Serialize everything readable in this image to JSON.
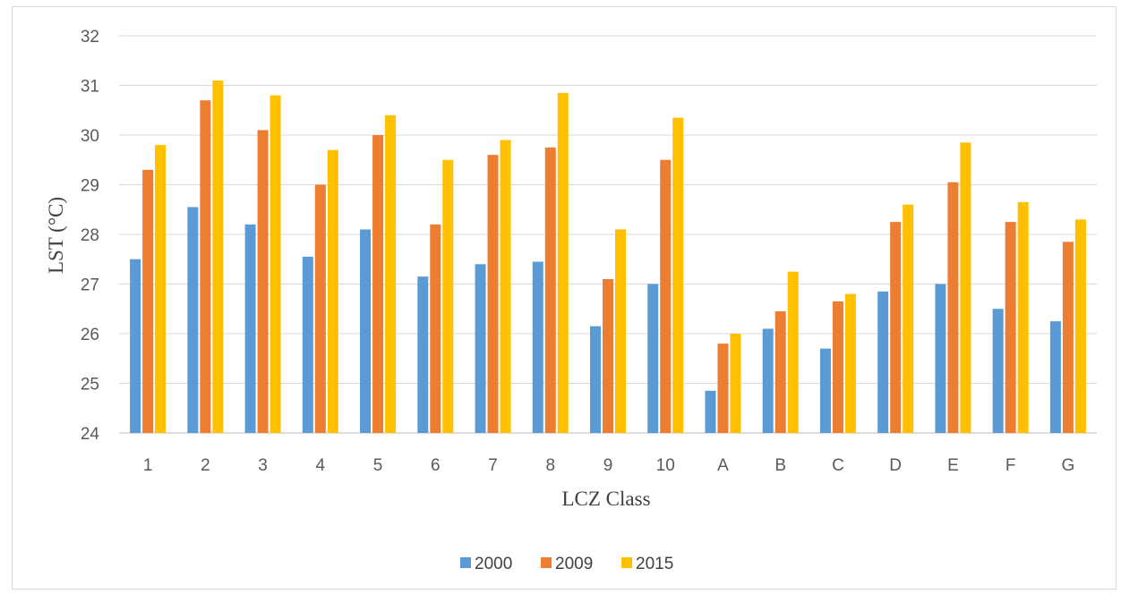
{
  "chart_data": {
    "type": "bar",
    "title": "",
    "xlabel": "LCZ Class",
    "ylabel": "LST (°C)",
    "ylim": [
      24,
      32
    ],
    "yticks": [
      "24",
      "25",
      "26",
      "27",
      "28",
      "29",
      "30",
      "31",
      "32"
    ],
    "grid": true,
    "legend_position": "bottom",
    "categories": [
      "1",
      "2",
      "3",
      "4",
      "5",
      "6",
      "7",
      "8",
      "9",
      "10",
      "A",
      "B",
      "C",
      "D",
      "E",
      "F",
      "G"
    ],
    "series": [
      {
        "name": "2000",
        "color": "#5b9bd5",
        "values": [
          27.5,
          28.55,
          28.2,
          27.55,
          28.1,
          27.15,
          27.4,
          27.45,
          26.15,
          27.0,
          24.85,
          26.1,
          25.7,
          26.85,
          27.0,
          26.5,
          26.25
        ]
      },
      {
        "name": "2009",
        "color": "#ed7d31",
        "values": [
          29.3,
          30.7,
          30.1,
          29.0,
          30.0,
          28.2,
          29.6,
          29.75,
          27.1,
          29.5,
          25.8,
          26.45,
          26.65,
          28.25,
          29.05,
          28.25,
          27.85
        ]
      },
      {
        "name": "2015",
        "color": "#ffc000",
        "values": [
          29.8,
          31.1,
          30.8,
          29.7,
          30.4,
          29.5,
          29.9,
          30.85,
          28.1,
          30.35,
          26.0,
          27.25,
          26.8,
          28.6,
          29.85,
          28.65,
          28.3
        ]
      }
    ]
  }
}
